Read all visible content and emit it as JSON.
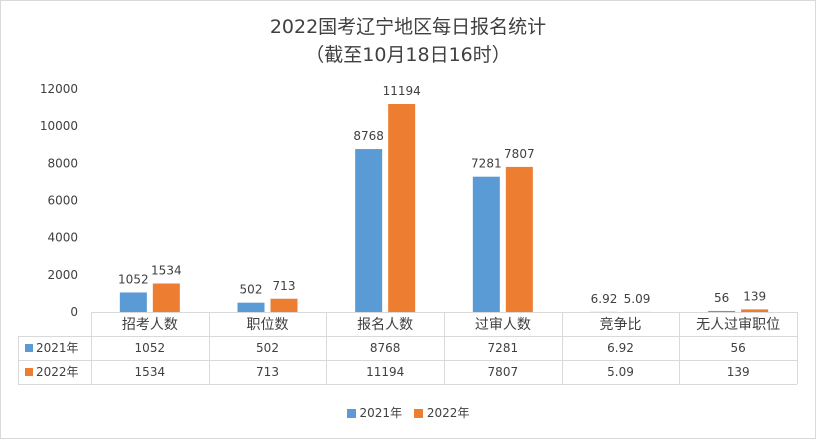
{
  "chart_data": {
    "type": "bar",
    "title": "2022国考辽宁地区每日报名统计",
    "subtitle": "（截至10月18日16时）",
    "categories": [
      "招考人数",
      "职位数",
      "报名人数",
      "过审人数",
      "竞争比",
      "无人过审职位"
    ],
    "series": [
      {
        "name": "2021年",
        "color": "#5b9bd5",
        "values": [
          1052,
          502,
          8768,
          7281,
          6.92,
          56
        ]
      },
      {
        "name": "2022年",
        "color": "#ed7d31",
        "values": [
          1534,
          713,
          11194,
          7807,
          5.09,
          139
        ]
      }
    ],
    "ylim": [
      0,
      12000
    ],
    "yticks": [
      0,
      2000,
      4000,
      6000,
      8000,
      10000,
      12000
    ],
    "grid": false,
    "legend": "bottom",
    "data_table": true
  }
}
